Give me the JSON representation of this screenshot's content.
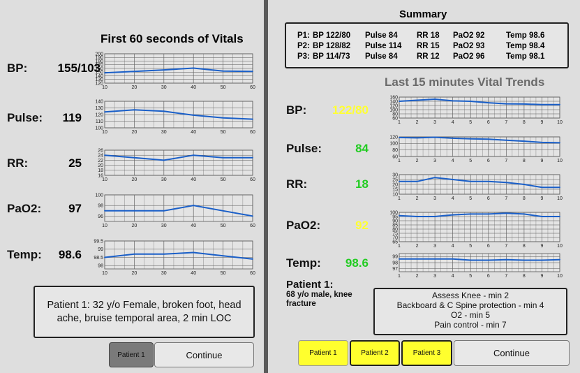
{
  "left": {
    "title": "First 60 seconds of Vitals",
    "vitals": [
      {
        "label": "BP:",
        "value": "155/103"
      },
      {
        "label": "Pulse:",
        "value": "119"
      },
      {
        "label": "RR:",
        "value": "25"
      },
      {
        "label": "PaO2:",
        "value": "97"
      },
      {
        "label": "Temp:",
        "value": "98.6"
      }
    ],
    "patient_info": "Patient 1: 32 y/o Female, broken foot, head ache, bruise temporal area, 2 min LOC",
    "buttons": {
      "patient1": "Patient 1",
      "continue": "Continue"
    }
  },
  "right": {
    "summary_title": "Summary",
    "summary_rows": [
      {
        "p": "P1:",
        "bp": "BP 122/80",
        "pulse": "Pulse 84",
        "rr": "RR 18",
        "pao2": "PaO2 92",
        "temp": "Temp 98.6"
      },
      {
        "p": "P2:",
        "bp": "BP 128/82",
        "pulse": "Pulse 114",
        "rr": "RR 15",
        "pao2": "PaO2 93",
        "temp": "Temp 98.4"
      },
      {
        "p": "P3:",
        "bp": "BP 114/73",
        "pulse": "Pulse 84",
        "rr": "RR 12",
        "pao2": "PaO2 96",
        "temp": "Temp 98.1"
      }
    ],
    "trends_title": "Last 15 minutes Vital Trends",
    "vitals": [
      {
        "label": "BP:",
        "value": "122/80",
        "color": "#ffff33"
      },
      {
        "label": "Pulse:",
        "value": "84",
        "color": "#22cc22"
      },
      {
        "label": "RR:",
        "value": "18",
        "color": "#22cc22"
      },
      {
        "label": "PaO2:",
        "value": "92",
        "color": "#ffff33"
      },
      {
        "label": "Temp:",
        "value": "98.6",
        "color": "#22cc22"
      }
    ],
    "patient_name": "Patient 1:",
    "patient_desc": "68 y/o male, knee fracture",
    "orders": [
      "Assess Knee - min 2",
      "Backboard & C Spine protection - min 4",
      "O2 - min 5",
      "Pain control - min 7"
    ],
    "buttons": {
      "patient1": "Patient 1",
      "patient2": "Patient 2",
      "patient3": "Patient 3",
      "continue": "Continue"
    }
  },
  "colors": {
    "line": "#1a5fc8",
    "yellow_btn": "#ffff2e",
    "gray_btn": "#7a7a7a"
  },
  "chart_data": [
    {
      "type": "line",
      "title": "",
      "x": [
        10,
        20,
        30,
        40,
        50,
        60
      ],
      "xlim": [
        10,
        60
      ],
      "ylim": [
        120,
        200
      ],
      "yticks": [
        120,
        130,
        140,
        150,
        160,
        170,
        180,
        190,
        200
      ],
      "series": [
        {
          "values": [
            148,
            152,
            156,
            161,
            153,
            152
          ]
        }
      ]
    },
    {
      "type": "line",
      "title": "",
      "x": [
        10,
        20,
        30,
        40,
        50,
        60
      ],
      "xlim": [
        10,
        60
      ],
      "ylim": [
        100,
        140
      ],
      "yticks": [
        100,
        110,
        120,
        130,
        140
      ],
      "series": [
        {
          "values": [
            124,
            127,
            125,
            119,
            115,
            113
          ]
        }
      ]
    },
    {
      "type": "line",
      "title": "",
      "x": [
        10,
        20,
        30,
        40,
        50,
        60
      ],
      "xlim": [
        10,
        60
      ],
      "ylim": [
        16,
        26
      ],
      "yticks": [
        16,
        18,
        20,
        22,
        24,
        26
      ],
      "series": [
        {
          "values": [
            24,
            23,
            22,
            24,
            23,
            23
          ]
        }
      ]
    },
    {
      "type": "line",
      "title": "",
      "x": [
        10,
        20,
        30,
        40,
        50,
        60
      ],
      "xlim": [
        10,
        60
      ],
      "ylim": [
        95,
        100
      ],
      "yticks": [
        96,
        98,
        100
      ],
      "series": [
        {
          "values": [
            97,
            97,
            97,
            98,
            97,
            96
          ]
        }
      ]
    },
    {
      "type": "line",
      "title": "",
      "x": [
        10,
        20,
        30,
        40,
        50,
        60
      ],
      "xlim": [
        10,
        60
      ],
      "ylim": [
        97.8,
        99.5
      ],
      "yticks": [
        98,
        98.5,
        99,
        99.5
      ],
      "series": [
        {
          "values": [
            98.5,
            98.7,
            98.7,
            98.8,
            98.6,
            98.4
          ]
        }
      ]
    },
    {
      "type": "line",
      "title": "",
      "x": [
        1,
        2,
        3,
        4,
        5,
        6,
        7,
        8,
        9,
        10
      ],
      "xlim": [
        1,
        10
      ],
      "ylim": [
        60,
        160
      ],
      "yticks": [
        60,
        80,
        100,
        120,
        140,
        160
      ],
      "series": [
        {
          "values": [
            140,
            145,
            150,
            142,
            140,
            133,
            128,
            127,
            124,
            124
          ]
        }
      ]
    },
    {
      "type": "line",
      "title": "",
      "x": [
        1,
        2,
        3,
        4,
        5,
        6,
        7,
        8,
        9,
        10
      ],
      "xlim": [
        1,
        10
      ],
      "ylim": [
        60,
        120
      ],
      "yticks": [
        60,
        80,
        100,
        120
      ],
      "series": [
        {
          "values": [
            118,
            117,
            119,
            116,
            114,
            113,
            110,
            107,
            103,
            102
          ]
        }
      ]
    },
    {
      "type": "line",
      "title": "",
      "x": [
        1,
        2,
        3,
        4,
        5,
        6,
        7,
        8,
        9,
        10
      ],
      "xlim": [
        1,
        10
      ],
      "ylim": [
        10,
        30
      ],
      "yticks": [
        10,
        15,
        20,
        25,
        30
      ],
      "series": [
        {
          "values": [
            23,
            23,
            27,
            25,
            23,
            23,
            22,
            20,
            17,
            17
          ]
        }
      ]
    },
    {
      "type": "line",
      "title": "",
      "x": [
        1,
        2,
        3,
        4,
        5,
        6,
        7,
        8,
        9,
        10
      ],
      "xlim": [
        1,
        10
      ],
      "ylim": [
        65,
        100
      ],
      "yticks": [
        65,
        70,
        75,
        80,
        85,
        90,
        95,
        100
      ],
      "series": [
        {
          "values": [
            96,
            95,
            95,
            97,
            98,
            98,
            99,
            98,
            95,
            95
          ]
        }
      ]
    },
    {
      "type": "line",
      "title": "",
      "x": [
        1,
        2,
        3,
        4,
        5,
        6,
        7,
        8,
        9,
        10
      ],
      "xlim": [
        1,
        10
      ],
      "ylim": [
        96.5,
        99.5
      ],
      "yticks": [
        97,
        98,
        99
      ],
      "series": [
        {
          "values": [
            98.6,
            98.6,
            98.6,
            98.6,
            98.4,
            98.4,
            98.5,
            98.4,
            98.4,
            98.5
          ]
        }
      ]
    }
  ]
}
